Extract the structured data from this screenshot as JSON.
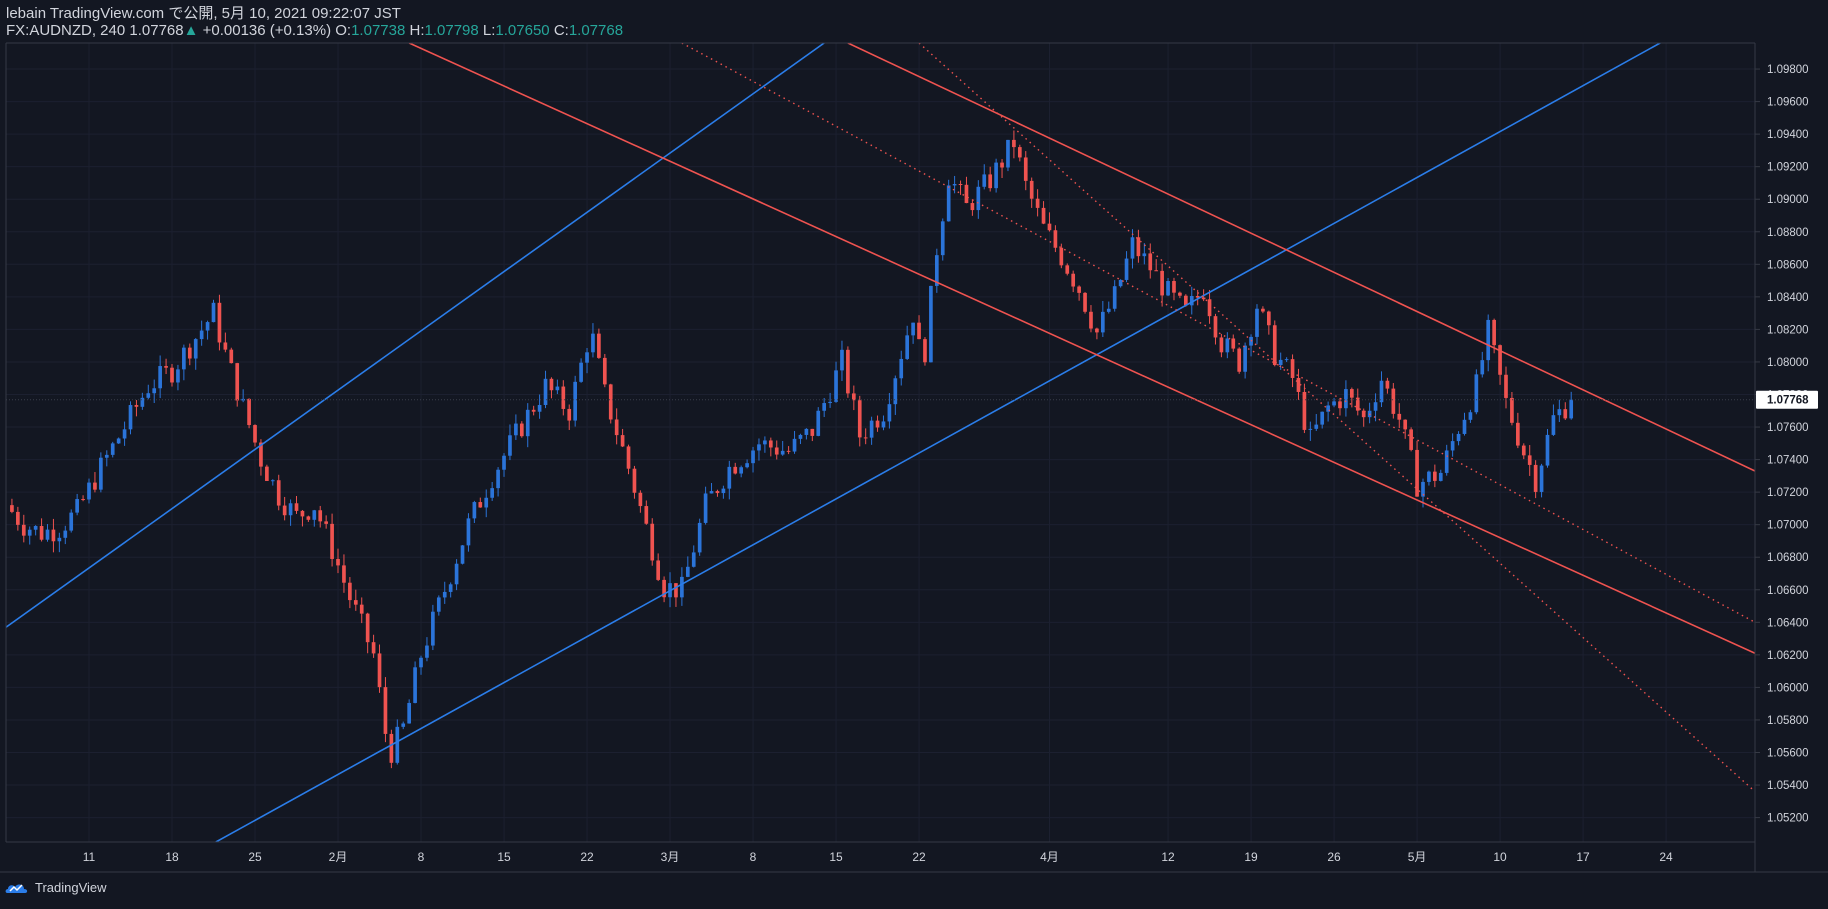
{
  "header": {
    "line1": "lebain TradingView.com で公開, 5月 10, 2021 09:22:07 JST",
    "symbol": "FX:AUDNZD, 240",
    "last": "1.07768",
    "arrow": "▲",
    "change": "+0.00136 (+0.13%)",
    "o_label": "O:",
    "o_value": "1.07738",
    "h_label": "H:",
    "h_value": "1.07798",
    "l_label": "L:",
    "l_value": "1.07650",
    "c_label": "C:",
    "c_value": "1.07768"
  },
  "footer": {
    "brand": "TradingView"
  },
  "colors": {
    "background": "#131722",
    "up_candle": "#2b74d9",
    "down_candle": "#ef5350",
    "channel_up": "#2b7de9",
    "channel_down": "#ef5350",
    "grid": "#1c2030",
    "axis_text": "#d1d4dc",
    "price_tag_bg": "#ffffff",
    "price_tag_text": "#131722"
  },
  "chart_data": {
    "type": "candlestick",
    "symbol": "FX:AUDNZD",
    "interval": "240",
    "y_ticks": [
      "1.05200",
      "1.05400",
      "1.05600",
      "1.05800",
      "1.06000",
      "1.06200",
      "1.06400",
      "1.06600",
      "1.06800",
      "1.07000",
      "1.07200",
      "1.07400",
      "1.07600",
      "1.07800",
      "1.08000",
      "1.08200",
      "1.08400",
      "1.08600",
      "1.08800",
      "1.09000",
      "1.09200",
      "1.09400",
      "1.09600",
      "1.09800"
    ],
    "ylim": [
      1.0505,
      1.0996
    ],
    "last_price": "1.07768",
    "last_price_value": 1.07768,
    "x_ticks": [
      {
        "day": 0,
        "label": "11"
      },
      {
        "day": 7,
        "label": "18"
      },
      {
        "day": 14,
        "label": "25"
      },
      {
        "day": 21,
        "label": "2月"
      },
      {
        "day": 28,
        "label": "8"
      },
      {
        "day": 35,
        "label": "15"
      },
      {
        "day": 42,
        "label": "22"
      },
      {
        "day": 49,
        "label": "3月"
      },
      {
        "day": 56,
        "label": "8"
      },
      {
        "day": 63,
        "label": "15"
      },
      {
        "day": 70,
        "label": "22"
      },
      {
        "day": 81,
        "label": "4月"
      },
      {
        "day": 91,
        "label": "12"
      },
      {
        "day": 98,
        "label": "19"
      },
      {
        "day": 105,
        "label": "26"
      },
      {
        "day": 112,
        "label": "5月"
      },
      {
        "day": 119,
        "label": "10"
      },
      {
        "day": 126,
        "label": "17"
      },
      {
        "day": 133,
        "label": "24"
      }
    ],
    "xlim_days": [
      -7,
      140.5
    ],
    "price_path": [
      [
        -7,
        1.0712
      ],
      [
        -5.5,
        1.07
      ],
      [
        -4,
        1.0695
      ],
      [
        -2.5,
        1.0698
      ],
      [
        -1,
        1.0708
      ],
      [
        1,
        1.0735
      ],
      [
        3,
        1.076
      ],
      [
        5,
        1.0785
      ],
      [
        7,
        1.0795
      ],
      [
        9,
        1.0815
      ],
      [
        10.5,
        1.083
      ],
      [
        11.5,
        1.0805
      ],
      [
        13,
        1.0772
      ],
      [
        14.5,
        1.074
      ],
      [
        16,
        1.0718
      ],
      [
        17.5,
        1.0705
      ],
      [
        19,
        1.0712
      ],
      [
        20.5,
        1.0685
      ],
      [
        22,
        1.0655
      ],
      [
        24,
        1.062
      ],
      [
        25.3,
        1.0558
      ],
      [
        26.5,
        1.0575
      ],
      [
        28,
        1.062
      ],
      [
        30,
        1.066
      ],
      [
        32,
        1.07
      ],
      [
        34,
        1.073
      ],
      [
        36,
        1.0755
      ],
      [
        38.5,
        1.0785
      ],
      [
        40.5,
        1.077
      ],
      [
        42.3,
        1.082
      ],
      [
        43.5,
        1.078
      ],
      [
        45.5,
        1.0735
      ],
      [
        47,
        1.0698
      ],
      [
        48.5,
        1.0662
      ],
      [
        50,
        1.066
      ],
      [
        52,
        1.0712
      ],
      [
        54,
        1.0735
      ],
      [
        56.5,
        1.075
      ],
      [
        59,
        1.0745
      ],
      [
        61,
        1.0758
      ],
      [
        63.5,
        1.08
      ],
      [
        65,
        1.0755
      ],
      [
        67,
        1.077
      ],
      [
        69.5,
        1.083
      ],
      [
        70.3,
        1.0795
      ],
      [
        71.5,
        1.087
      ],
      [
        72.5,
        1.0915
      ],
      [
        74,
        1.0895
      ],
      [
        76,
        1.0912
      ],
      [
        78,
        1.0935
      ],
      [
        79,
        1.0908
      ],
      [
        80.5,
        1.0882
      ],
      [
        82,
        1.0865
      ],
      [
        83.5,
        1.0845
      ],
      [
        85,
        1.0818
      ],
      [
        86.5,
        1.084
      ],
      [
        88,
        1.0872
      ],
      [
        89.5,
        1.0858
      ],
      [
        91,
        1.0842
      ],
      [
        92.5,
        1.083
      ],
      [
        94,
        1.0845
      ],
      [
        95.5,
        1.0812
      ],
      [
        97,
        1.08
      ],
      [
        98.5,
        1.0835
      ],
      [
        100,
        1.0805
      ],
      [
        101.5,
        1.079
      ],
      [
        103,
        1.0752
      ],
      [
        104.5,
        1.0772
      ],
      [
        106,
        1.078
      ],
      [
        107.5,
        1.0765
      ],
      [
        109,
        1.079
      ],
      [
        110.5,
        1.0765
      ],
      [
        112,
        1.0725
      ],
      [
        114,
        1.0732
      ],
      [
        115.5,
        1.076
      ],
      [
        117,
        1.0785
      ],
      [
        118,
        1.0818
      ],
      [
        119.5,
        1.0775
      ],
      [
        121,
        1.0745
      ],
      [
        122,
        1.0728
      ],
      [
        123.5,
        1.0765
      ],
      [
        125,
        1.07768
      ]
    ],
    "trendlines": [
      {
        "name": "blue-upper",
        "color": "#2b7de9",
        "style": "solid",
        "p1": [
          -7,
          1.0637
        ],
        "p2": [
          62,
          1.0996
        ]
      },
      {
        "name": "blue-lower",
        "color": "#2b7de9",
        "style": "solid",
        "p1": [
          10.7,
          1.0505
        ],
        "p2": [
          132.5,
          1.0996
        ]
      },
      {
        "name": "red-top",
        "color": "#ef5350",
        "style": "solid",
        "p1": [
          64,
          1.0996
        ],
        "p2": [
          140.5,
          1.0733
        ]
      },
      {
        "name": "red-mid",
        "color": "#ef5350",
        "style": "solid",
        "p1": [
          27,
          1.0996
        ],
        "p2": [
          140.5,
          1.0621
        ]
      },
      {
        "name": "red-dotted-1",
        "color": "#ef5350",
        "style": "dotted",
        "p1": [
          50,
          1.0996
        ],
        "p2": [
          140.5,
          1.064
        ]
      },
      {
        "name": "red-dotted-2",
        "color": "#ef5350",
        "style": "dotted",
        "p1": [
          70,
          1.0996
        ],
        "p2": [
          140.5,
          1.0536
        ]
      }
    ]
  }
}
